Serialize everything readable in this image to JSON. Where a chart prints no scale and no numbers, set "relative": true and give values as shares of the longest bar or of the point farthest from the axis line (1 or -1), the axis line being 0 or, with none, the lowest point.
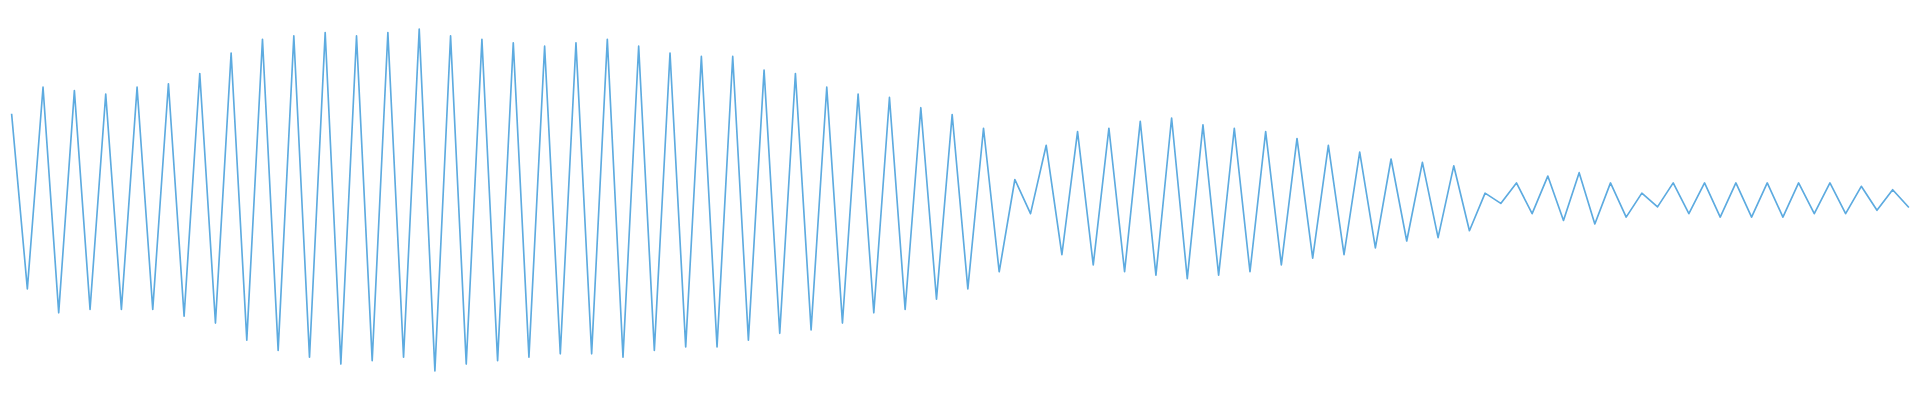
{
  "chart_data": {
    "type": "line",
    "relative": true,
    "marker": "none",
    "line_style": "solid",
    "categories": [
      null,
      null,
      null,
      null,
      null,
      null,
      null,
      null,
      null,
      null,
      null,
      null,
      null,
      null,
      null,
      null,
      null,
      null,
      null,
      null,
      null,
      null,
      null,
      null,
      null,
      null,
      null,
      null,
      null,
      null,
      null,
      null,
      null,
      null,
      null,
      null,
      null,
      null,
      null,
      null,
      null,
      null,
      null,
      null,
      null,
      null,
      null,
      null,
      null,
      null,
      null,
      null,
      null,
      null,
      null,
      null,
      null,
      null,
      null,
      null,
      null,
      null,
      null,
      null,
      null,
      null,
      null,
      null,
      null,
      null,
      null,
      null,
      null,
      null,
      null,
      null,
      null,
      null,
      null,
      null,
      null,
      null,
      null,
      null,
      null,
      null,
      null,
      null,
      null,
      null,
      null,
      null,
      null,
      null,
      null,
      null,
      null,
      null,
      null,
      null,
      null,
      null,
      null,
      null,
      null,
      null,
      null,
      null,
      null,
      null,
      null,
      null,
      null,
      null,
      null,
      null,
      null,
      null,
      null,
      null,
      null,
      null
    ],
    "series": [
      {
        "color": "#5dabe0",
        "values": [
          0.75,
          0.24,
          0.83,
          0.17,
          0.82,
          0.18,
          0.81,
          0.18,
          0.83,
          0.18,
          0.84,
          0.16,
          0.87,
          0.14,
          0.93,
          0.09,
          0.97,
          0.06,
          0.98,
          0.04,
          0.99,
          0.02,
          0.98,
          0.03,
          0.99,
          0.04,
          1.0,
          0.0,
          0.98,
          0.02,
          0.97,
          0.03,
          0.96,
          0.04,
          0.95,
          0.05,
          0.96,
          0.05,
          0.97,
          0.04,
          0.95,
          0.06,
          0.93,
          0.07,
          0.92,
          0.07,
          0.92,
          0.09,
          0.88,
          0.11,
          0.87,
          0.12,
          0.83,
          0.14,
          0.81,
          0.17,
          0.8,
          0.18,
          0.77,
          0.21,
          0.75,
          0.24,
          0.71,
          0.29,
          0.56,
          0.46,
          0.66,
          0.34,
          0.7,
          0.31,
          0.71,
          0.29,
          0.73,
          0.28,
          0.74,
          0.27,
          0.72,
          0.28,
          0.71,
          0.29,
          0.7,
          0.31,
          0.68,
          0.33,
          0.66,
          0.34,
          0.64,
          0.36,
          0.62,
          0.38,
          0.61,
          0.39,
          0.6,
          0.41,
          0.52,
          0.49,
          0.55,
          0.46,
          0.57,
          0.44,
          0.58,
          0.43,
          0.55,
          0.45,
          0.52,
          0.48,
          0.55,
          0.46,
          0.55,
          0.45,
          0.55,
          0.45,
          0.55,
          0.45,
          0.55,
          0.46,
          0.55,
          0.46,
          0.54,
          0.47,
          0.53,
          0.48
        ]
      }
    ]
  }
}
